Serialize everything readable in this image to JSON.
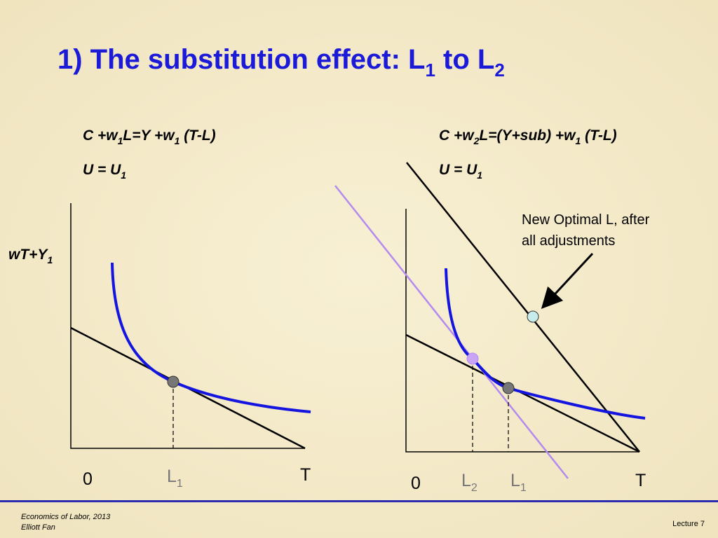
{
  "title": [
    "1) The substitution effect: L",
    "1",
    " to L",
    "2"
  ],
  "left_panel": {
    "equation": [
      "C +w",
      "1",
      "L=Y +w",
      "1",
      " (T-L)"
    ],
    "utility": [
      "U = U",
      "1"
    ],
    "y_axis_label": [
      "wT+Y",
      "1"
    ],
    "origin": "0",
    "l_label": [
      "L",
      "1"
    ],
    "t_label": "T"
  },
  "right_panel": {
    "equation": [
      "C +w",
      "2",
      "L=(Y+sub) +w",
      "1",
      " (T-L)"
    ],
    "utility": [
      "U = U",
      "1"
    ],
    "origin": "0",
    "l2_label": [
      "L",
      "2"
    ],
    "l1_label": [
      "L",
      "1"
    ],
    "t_label": "T",
    "annotation": [
      "New Optimal L, after",
      "all adjustments"
    ]
  },
  "footer": {
    "course": "Economics of Labor, 2013",
    "author": "Elliott Fan",
    "lecture": "Lecture 7"
  }
}
